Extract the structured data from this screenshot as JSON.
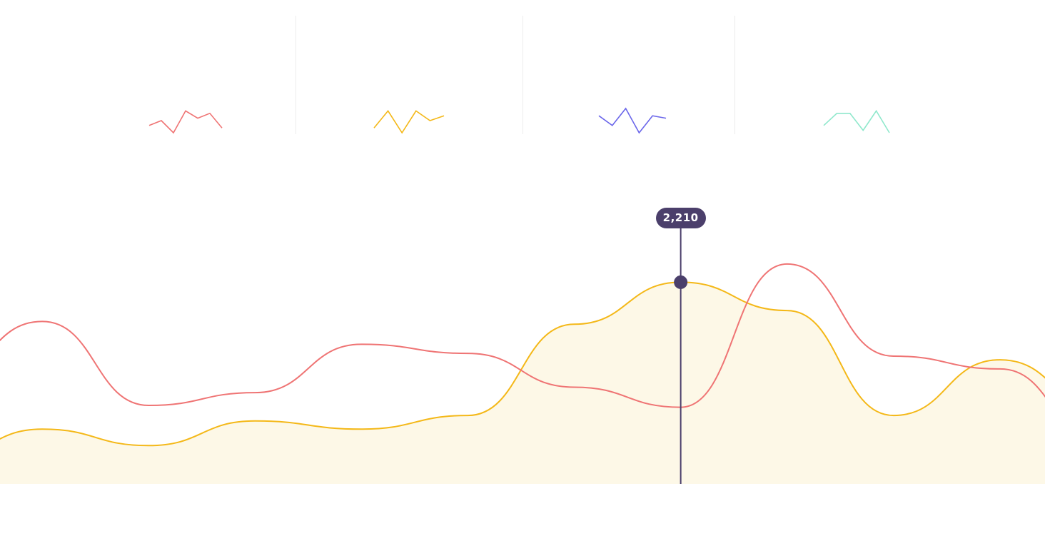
{
  "colors": {
    "red": "#ef7474",
    "yellow": "#f4b818",
    "yellow_fill": "#fdf8e7",
    "blue": "#6b67ea",
    "mint": "#8fe8cc",
    "marker": "#4b3f6b",
    "divider": "#ececec"
  },
  "sparklines": [
    {
      "color_key": "red",
      "values": [
        3,
        5,
        0,
        9,
        6,
        8,
        2
      ]
    },
    {
      "color_key": "yellow",
      "values": [
        2,
        9,
        0,
        9,
        5,
        7
      ]
    },
    {
      "color_key": "blue",
      "values": [
        7,
        3,
        10,
        0,
        7,
        6
      ]
    },
    {
      "color_key": "mint",
      "values": [
        3,
        8,
        8,
        1,
        9,
        0
      ]
    }
  ],
  "chart_data": {
    "type": "area",
    "grid": false,
    "legend": "none",
    "x": [
      0,
      1,
      2,
      3,
      4,
      5,
      6,
      7,
      8,
      9,
      10,
      11
    ],
    "ylim": [
      0,
      2800
    ],
    "series": [
      {
        "color_key": "red",
        "fill": false,
        "values": [
          1100,
          1780,
          860,
          1000,
          1530,
          1430,
          1060,
          840,
          2410,
          1400,
          1260,
          400
        ]
      },
      {
        "color_key": "yellow",
        "fill": true,
        "values": [
          250,
          600,
          420,
          690,
          600,
          750,
          1750,
          2210,
          1900,
          750,
          1360,
          800
        ]
      }
    ],
    "highlight": {
      "series_index": 1,
      "x": 7,
      "value": 2210,
      "label": "2,210"
    }
  }
}
